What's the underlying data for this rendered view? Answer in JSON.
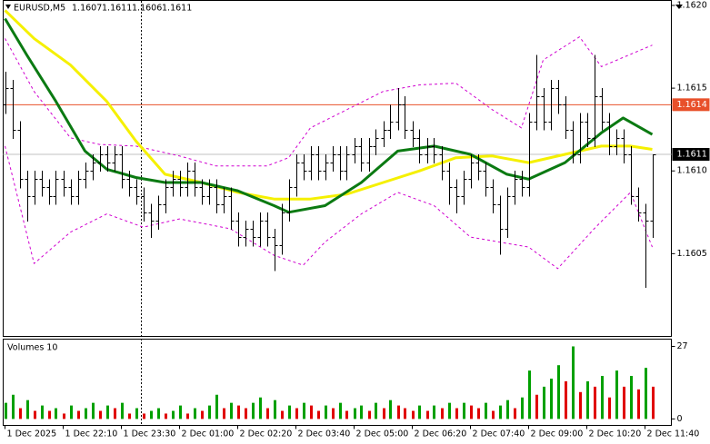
{
  "chart_data": {
    "type": "ohlc",
    "title": "EURUSD,M5",
    "open": [
      1.1614,
      1.1615,
      1.16125,
      1.16095,
      1.16085,
      1.16095,
      1.1609,
      1.16085,
      1.16095,
      1.1609,
      1.16085,
      1.16095,
      1.161,
      1.16105,
      1.1611,
      1.16105,
      1.1611,
      1.16095,
      1.1609,
      1.16085,
      1.16075,
      1.1607,
      1.1608,
      1.1609,
      1.16095,
      1.1609,
      1.161,
      1.1609,
      1.16085,
      1.1609,
      1.1608,
      1.16085,
      1.1607,
      1.1606,
      1.16065,
      1.1606,
      1.1607,
      1.1606,
      1.16055,
      1.16075,
      1.1609,
      1.16105,
      1.161,
      1.1611,
      1.161,
      1.16105,
      1.1611,
      1.161,
      1.1611,
      1.16115,
      1.16105,
      1.16115,
      1.1612,
      1.16125,
      1.1613,
      1.1614,
      1.16125,
      1.1612,
      1.1611,
      1.16115,
      1.1611,
      1.161,
      1.1609,
      1.16085,
      1.16095,
      1.16105,
      1.161,
      1.1609,
      1.1608,
      1.16065,
      1.16085,
      1.16095,
      1.1609,
      1.1613,
      1.16145,
      1.1613,
      1.1615,
      1.1614,
      1.16125,
      1.1611,
      1.1613,
      1.1612,
      1.16145,
      1.1613,
      1.16115,
      1.1612,
      1.1611,
      1.16085,
      1.16075,
      1.1607
    ],
    "high": [
      1.1616,
      1.16155,
      1.1613,
      1.161,
      1.161,
      1.161,
      1.16095,
      1.161,
      1.161,
      1.16095,
      1.161,
      1.16105,
      1.1611,
      1.16115,
      1.16115,
      1.16115,
      1.16115,
      1.161,
      1.16095,
      1.1609,
      1.1608,
      1.16085,
      1.16095,
      1.161,
      1.161,
      1.16105,
      1.16105,
      1.16095,
      1.16095,
      1.16095,
      1.1609,
      1.1609,
      1.16075,
      1.1607,
      1.1607,
      1.16075,
      1.16075,
      1.16065,
      1.1608,
      1.16095,
      1.1611,
      1.1611,
      1.16115,
      1.16115,
      1.1611,
      1.16115,
      1.16115,
      1.16115,
      1.1612,
      1.1612,
      1.1612,
      1.16125,
      1.1613,
      1.1614,
      1.1615,
      1.16145,
      1.1613,
      1.16125,
      1.1612,
      1.1612,
      1.16115,
      1.16105,
      1.16095,
      1.161,
      1.1611,
      1.1611,
      1.16105,
      1.16095,
      1.16085,
      1.1609,
      1.161,
      1.161,
      1.16135,
      1.1617,
      1.1615,
      1.16155,
      1.16155,
      1.16145,
      1.1613,
      1.16135,
      1.16135,
      1.1617,
      1.1615,
      1.16135,
      1.16125,
      1.16125,
      1.16115,
      1.1609,
      1.1608,
      1.1611
    ],
    "low": [
      1.16135,
      1.1612,
      1.1609,
      1.1607,
      1.1608,
      1.16085,
      1.1608,
      1.1608,
      1.16085,
      1.1608,
      1.1608,
      1.1609,
      1.16095,
      1.161,
      1.161,
      1.161,
      1.1609,
      1.16085,
      1.1608,
      1.1607,
      1.1606,
      1.16065,
      1.16075,
      1.16085,
      1.16085,
      1.16085,
      1.16085,
      1.1608,
      1.1608,
      1.16075,
      1.16075,
      1.16065,
      1.16055,
      1.16055,
      1.16055,
      1.16055,
      1.16055,
      1.1604,
      1.1605,
      1.1607,
      1.16085,
      1.16095,
      1.16095,
      1.16095,
      1.16095,
      1.161,
      1.16095,
      1.16095,
      1.16105,
      1.161,
      1.161,
      1.1611,
      1.16115,
      1.1612,
      1.16125,
      1.1612,
      1.16115,
      1.16105,
      1.16105,
      1.16105,
      1.16095,
      1.1608,
      1.16075,
      1.1608,
      1.1609,
      1.16095,
      1.16085,
      1.16075,
      1.1605,
      1.1606,
      1.1608,
      1.16085,
      1.16085,
      1.16125,
      1.16125,
      1.16125,
      1.16135,
      1.1612,
      1.16105,
      1.16105,
      1.16115,
      1.16115,
      1.16125,
      1.1611,
      1.1611,
      1.16105,
      1.1608,
      1.1607,
      1.1603,
      1.1606
    ],
    "close": [
      1.1615,
      1.16125,
      1.16095,
      1.16085,
      1.16095,
      1.1609,
      1.16085,
      1.16095,
      1.1609,
      1.16085,
      1.16095,
      1.161,
      1.16105,
      1.1611,
      1.16105,
      1.1611,
      1.16095,
      1.1609,
      1.16085,
      1.16075,
      1.1607,
      1.1608,
      1.1609,
      1.16095,
      1.1609,
      1.161,
      1.1609,
      1.16085,
      1.1609,
      1.1608,
      1.16085,
      1.1607,
      1.1606,
      1.16065,
      1.1606,
      1.1607,
      1.1606,
      1.16055,
      1.16075,
      1.1609,
      1.16105,
      1.161,
      1.1611,
      1.161,
      1.16105,
      1.1611,
      1.161,
      1.1611,
      1.16115,
      1.16105,
      1.16115,
      1.1612,
      1.16125,
      1.1613,
      1.1614,
      1.16125,
      1.1612,
      1.1611,
      1.16115,
      1.1611,
      1.161,
      1.1609,
      1.16085,
      1.16095,
      1.16105,
      1.161,
      1.1609,
      1.1608,
      1.16065,
      1.16085,
      1.16095,
      1.1609,
      1.1613,
      1.16145,
      1.1613,
      1.1615,
      1.1614,
      1.16125,
      1.1611,
      1.1613,
      1.1612,
      1.16145,
      1.1613,
      1.16115,
      1.1612,
      1.1611,
      1.16085,
      1.16075,
      1.1607,
      1.1611
    ],
    "bar_color": "#000000",
    "xlim": [
      -0.25,
      91.625
    ],
    "ylim": [
      1.16,
      1.16203
    ],
    "yticks": [
      1.1605,
      {
        "value": 1.161,
        "label": "1.1610"
      },
      1.1615,
      {
        "value": 1.162,
        "label": "1.1620"
      }
    ],
    "xticks": [
      {
        "value": 0,
        "label": "1 Dec 2025"
      },
      {
        "value": 8,
        "label": "1 Dec 22:10"
      },
      {
        "value": 16,
        "label": "1 Dec 23:30"
      },
      {
        "value": 24,
        "label": "2 Dec 01:00"
      },
      {
        "value": 32,
        "label": "2 Dec 02:20"
      },
      {
        "value": 40,
        "label": "2 Dec 03:40"
      },
      {
        "value": 48,
        "label": "2 Dec 05:00"
      },
      {
        "value": 56,
        "label": "2 Dec 06:20"
      },
      {
        "value": 64,
        "label": "2 Dec 07:40"
      },
      {
        "value": 72,
        "label": "2 Dec 09:00"
      },
      {
        "value": 80,
        "label": "2 Dec 10:20"
      },
      {
        "value": 88,
        "label": "2 Dec 11:40"
      }
    ],
    "grid": false,
    "lines": [
      {
        "color": "#d000d0",
        "dashed": true,
        "width": 1,
        "x": [
          0,
          4,
          9,
          13,
          18,
          24,
          29,
          36,
          39,
          42,
          47,
          52,
          57,
          62,
          67,
          71,
          74,
          79,
          82,
          89
        ],
        "values": [
          1.1618,
          1.16148,
          1.1612,
          1.16116,
          1.16115,
          1.16109,
          1.16103,
          1.16103,
          1.16108,
          1.16126,
          1.16137,
          1.16148,
          1.16152,
          1.16153,
          1.16137,
          1.16126,
          1.16167,
          1.16181,
          1.16163,
          1.16176
        ]
      },
      {
        "color": "#d000d0",
        "dashed": true,
        "width": 1,
        "x": [
          0,
          4,
          9,
          14,
          19,
          24,
          31,
          37,
          41,
          44,
          49,
          54,
          59,
          64,
          68,
          72,
          76,
          81,
          86,
          89
        ],
        "values": [
          1.16115,
          1.16044,
          1.16063,
          1.16074,
          1.16066,
          1.16071,
          1.16065,
          1.16049,
          1.16043,
          1.16057,
          1.16074,
          1.16087,
          1.16079,
          1.1606,
          1.16057,
          1.16054,
          1.16041,
          1.16065,
          1.16087,
          1.16054
        ]
      },
      {
        "color": "#f5f000",
        "dashed": false,
        "width": 3,
        "x": [
          0,
          4,
          9,
          14,
          18,
          22,
          27,
          32,
          37,
          42,
          47,
          52,
          57,
          62,
          67,
          72,
          77,
          82,
          86,
          89
        ],
        "values": [
          1.16197,
          1.1618,
          1.16164,
          1.16142,
          1.16118,
          1.16098,
          1.16093,
          1.16087,
          1.16083,
          1.16083,
          1.16086,
          1.16093,
          1.161,
          1.16108,
          1.16109,
          1.16105,
          1.1611,
          1.16115,
          1.16115,
          1.16113
        ]
      },
      {
        "color": "#0b7a12",
        "dashed": false,
        "width": 3,
        "x": [
          0,
          3,
          7,
          11,
          14,
          18,
          22,
          27,
          32,
          37,
          39,
          44,
          49,
          54,
          59,
          64,
          69,
          72,
          77,
          82,
          85,
          89
        ],
        "values": [
          1.16192,
          1.1617,
          1.16142,
          1.16112,
          1.16101,
          1.16096,
          1.16093,
          1.16093,
          1.16088,
          1.16079,
          1.16075,
          1.16079,
          1.16093,
          1.16112,
          1.16115,
          1.1611,
          1.16098,
          1.16095,
          1.16105,
          1.16123,
          1.16132,
          1.16122
        ]
      }
    ],
    "level_line": {
      "value": 1.1614,
      "color": "#e8502a"
    },
    "price_line_color": "#c0c0c0",
    "volume": {
      "title": "Volumes 10",
      "values": [
        6,
        9,
        4,
        7,
        3,
        5,
        3,
        4,
        2,
        5,
        3,
        4,
        6,
        3,
        5,
        4,
        6,
        2,
        4,
        2,
        3,
        4,
        2,
        3,
        5,
        2,
        4,
        3,
        5,
        9,
        4,
        6,
        5,
        4,
        6,
        8,
        4,
        7,
        3,
        5,
        4,
        6,
        5,
        3,
        5,
        4,
        6,
        3,
        4,
        5,
        3,
        6,
        4,
        7,
        5,
        4,
        3,
        5,
        3,
        5,
        4,
        6,
        4,
        6,
        5,
        4,
        6,
        3,
        5,
        7,
        4,
        8,
        18,
        9,
        12,
        15,
        20,
        14,
        27,
        10,
        14,
        12,
        16,
        8,
        18,
        12,
        16,
        11,
        19,
        12
      ],
      "ylim": [
        -2.4,
        29.7
      ],
      "yticks": [
        0,
        27
      ],
      "up_color": "#00a000",
      "down_color": "#e00000"
    }
  }
}
